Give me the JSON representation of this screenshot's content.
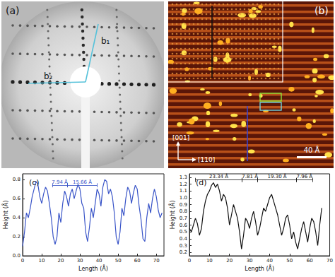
{
  "panels": {
    "a": {
      "label": "(a)",
      "vectors": [
        "b₁",
        "b₂"
      ]
    },
    "b": {
      "label": "(b)",
      "directions": [
        "[001]",
        "[110]"
      ],
      "scale_bar": "40 Å"
    }
  },
  "chart_data": [
    {
      "type": "line",
      "title": "(c)",
      "x_label": "Length (Å)",
      "y_label": "Height (Å)",
      "color": "#3a55c8",
      "x": [
        0,
        1,
        2,
        3,
        4,
        5,
        6,
        7,
        8,
        9,
        10,
        11,
        12,
        13,
        14,
        15,
        16,
        17,
        18,
        19,
        20,
        21,
        22,
        23,
        24,
        25,
        26,
        27,
        28,
        29,
        30,
        31,
        32,
        33,
        34,
        35,
        36,
        37,
        38,
        39,
        40,
        41,
        42,
        43,
        44,
        45,
        46,
        47,
        48,
        49,
        50,
        51,
        52,
        53,
        54,
        55,
        56,
        57,
        58,
        59,
        60,
        61,
        62,
        63,
        64,
        65,
        66,
        67,
        68,
        69,
        70,
        71,
        72,
        73
      ],
      "values": [
        0.1,
        0.25,
        0.45,
        0.4,
        0.5,
        0.62,
        0.7,
        0.78,
        0.75,
        0.62,
        0.55,
        0.65,
        0.72,
        0.68,
        0.55,
        0.4,
        0.2,
        0.12,
        0.2,
        0.45,
        0.35,
        0.55,
        0.68,
        0.62,
        0.52,
        0.65,
        0.7,
        0.6,
        0.68,
        0.75,
        0.7,
        0.55,
        0.5,
        0.25,
        0.15,
        0.3,
        0.5,
        0.4,
        0.55,
        0.7,
        0.65,
        0.52,
        0.72,
        0.8,
        0.78,
        0.65,
        0.7,
        0.62,
        0.45,
        0.2,
        0.12,
        0.25,
        0.5,
        0.42,
        0.6,
        0.72,
        0.68,
        0.55,
        0.66,
        0.74,
        0.7,
        0.52,
        0.38,
        0.18,
        0.15,
        0.4,
        0.55,
        0.45,
        0.6,
        0.7,
        0.62,
        0.48,
        0.4,
        0.45
      ],
      "xlim": [
        0,
        74
      ],
      "xticks": [
        0,
        10,
        20,
        30,
        40,
        50,
        60,
        70
      ],
      "ylim": [
        0,
        0.86
      ],
      "yticks": [
        {
          "value": 0,
          "label": "0.0"
        },
        0.2,
        0.4,
        0.6,
        0.8
      ],
      "annotations": [
        {
          "text": "7.94 Å",
          "from": 15.5,
          "to": 23.4,
          "y": 0.74
        },
        {
          "text": "15.66 Å",
          "from": 23.4,
          "to": 39.1,
          "y": 0.74
        }
      ]
    },
    {
      "type": "line",
      "title": "(d)",
      "x_label": "Length (Å)",
      "y_label": "Height (Å)",
      "color": "#111111",
      "x": [
        0,
        1,
        2,
        3,
        4,
        5,
        6,
        7,
        8,
        9,
        10,
        11,
        12,
        13,
        14,
        15,
        16,
        17,
        18,
        19,
        20,
        21,
        22,
        23,
        24,
        25,
        26,
        27,
        28,
        29,
        30,
        31,
        32,
        33,
        34,
        35,
        36,
        37,
        38,
        39,
        40,
        41,
        42,
        43,
        44,
        45,
        46,
        47,
        48,
        49,
        50,
        51,
        52,
        53,
        54,
        55,
        56,
        57,
        58,
        59,
        60,
        61,
        62,
        63,
        64,
        65,
        66
      ],
      "values": [
        0.55,
        0.5,
        0.6,
        0.7,
        0.62,
        0.45,
        0.55,
        0.8,
        0.95,
        1.05,
        1.1,
        1.18,
        1.22,
        1.15,
        1.2,
        1.1,
        0.95,
        1.05,
        1.0,
        0.85,
        0.6,
        0.75,
        0.9,
        0.8,
        0.7,
        0.5,
        0.25,
        0.45,
        0.7,
        0.65,
        0.55,
        0.7,
        0.8,
        0.65,
        0.45,
        0.55,
        0.7,
        0.85,
        0.8,
        0.9,
        1.0,
        1.05,
        0.95,
        0.85,
        0.75,
        0.6,
        0.45,
        0.55,
        0.7,
        0.75,
        0.6,
        0.4,
        0.5,
        0.35,
        0.25,
        0.4,
        0.55,
        0.65,
        0.5,
        0.35,
        0.55,
        0.7,
        0.65,
        0.5,
        0.3,
        0.6,
        0.85
      ],
      "xlim": [
        0,
        70
      ],
      "xticks": [
        0,
        10,
        20,
        30,
        40,
        50,
        60,
        70
      ],
      "ylim": [
        0.15,
        1.35
      ],
      "yticks": [
        0.2,
        0.3,
        0.4,
        0.5,
        0.6,
        0.7,
        0.8,
        0.9,
        {
          "value": 1,
          "label": "1.0"
        },
        1.1,
        1.2,
        1.3
      ],
      "annotations": [
        {
          "text": "23.34 Å",
          "from": 3.0,
          "to": 26.3,
          "y": 1.26
        },
        {
          "text": "7.81 Å",
          "from": 26.3,
          "to": 34.1,
          "y": 1.26
        },
        {
          "text": "19.30 Å",
          "from": 34.1,
          "to": 53.4,
          "y": 1.26
        },
        {
          "text": "7.96 Å",
          "from": 53.4,
          "to": 61.4,
          "y": 1.26
        }
      ]
    }
  ]
}
